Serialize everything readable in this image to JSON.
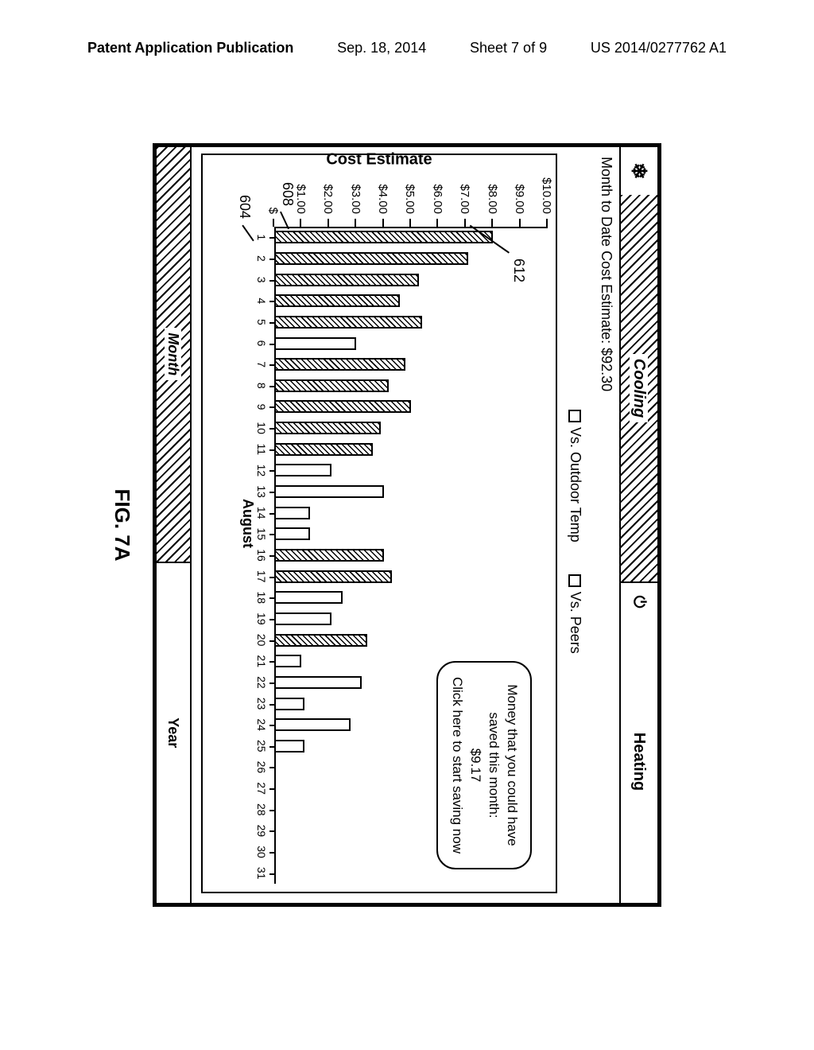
{
  "header": {
    "left": "Patent Application Publication",
    "date": "Sep. 18, 2014",
    "sheet": "Sheet 7 of 9",
    "pubno": "US 2014/0277762 A1"
  },
  "tabs": {
    "snow_icon": "❄",
    "cooling": "Cooling",
    "power_icon": "⏻",
    "heating": "Heating"
  },
  "cost_line": "Month to Date Cost Estimate: $92.30",
  "options": {
    "outdoor": "Vs. Outdoor Temp",
    "peers": "Vs. Peers"
  },
  "chart": {
    "type": "bar",
    "y_label": "Cost Estimate",
    "y_ticks": [
      "$",
      "$1.00",
      "$2.00",
      "$3.00",
      "$4.00",
      "$5.00",
      "$6.00",
      "$7.00",
      "$8.00",
      "$9.00",
      "$10.00"
    ],
    "y_max": 10,
    "x_ticks": [
      "1",
      "2",
      "3",
      "4",
      "5",
      "6",
      "7",
      "8",
      "9",
      "10",
      "11",
      "12",
      "13",
      "14",
      "15",
      "16",
      "17",
      "18",
      "19",
      "20",
      "21",
      "22",
      "23",
      "24",
      "25",
      "26",
      "27",
      "28",
      "29",
      "30",
      "31"
    ],
    "x_caption": "August",
    "bar_colors": {
      "outline": "#000000",
      "fill": "#ffffff"
    },
    "bars": [
      {
        "day": 1,
        "val": 8.0,
        "hatch": true
      },
      {
        "day": 2,
        "val": 7.1,
        "hatch": true
      },
      {
        "day": 3,
        "val": 5.3,
        "hatch": true
      },
      {
        "day": 4,
        "val": 4.6,
        "hatch": true
      },
      {
        "day": 5,
        "val": 5.4,
        "hatch": true
      },
      {
        "day": 6,
        "val": 3.0,
        "hatch": false
      },
      {
        "day": 7,
        "val": 4.8,
        "hatch": true
      },
      {
        "day": 8,
        "val": 4.2,
        "hatch": true
      },
      {
        "day": 9,
        "val": 5.0,
        "hatch": true
      },
      {
        "day": 10,
        "val": 3.9,
        "hatch": true
      },
      {
        "day": 11,
        "val": 3.6,
        "hatch": true
      },
      {
        "day": 12,
        "val": 2.1,
        "hatch": false
      },
      {
        "day": 13,
        "val": 4.0,
        "hatch": false
      },
      {
        "day": 14,
        "val": 1.3,
        "hatch": false
      },
      {
        "day": 15,
        "val": 1.3,
        "hatch": false
      },
      {
        "day": 16,
        "val": 4.0,
        "hatch": true
      },
      {
        "day": 17,
        "val": 4.3,
        "hatch": true
      },
      {
        "day": 18,
        "val": 2.5,
        "hatch": false
      },
      {
        "day": 19,
        "val": 2.1,
        "hatch": false
      },
      {
        "day": 20,
        "val": 3.4,
        "hatch": true
      },
      {
        "day": 21,
        "val": 1.0,
        "hatch": false
      },
      {
        "day": 22,
        "val": 3.2,
        "hatch": false
      },
      {
        "day": 23,
        "val": 1.1,
        "hatch": false
      },
      {
        "day": 24,
        "val": 2.8,
        "hatch": false
      },
      {
        "day": 25,
        "val": 1.1,
        "hatch": false
      }
    ],
    "background_color": "#ffffff"
  },
  "callout": {
    "line1": "Money that you could have",
    "line2": "saved this month:",
    "amount": "$9.17",
    "cta": "Click here to start saving now"
  },
  "leaders": {
    "l612": "612",
    "l608": "608",
    "l604": "604"
  },
  "bottom": {
    "month": "Month",
    "year": "Year"
  },
  "fig_label": "FIG. 7A",
  "page_box": "7"
}
